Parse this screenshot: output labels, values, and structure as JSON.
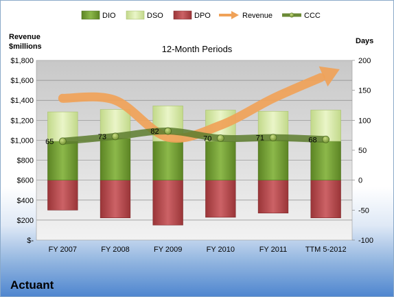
{
  "company": "Actuant",
  "chart_data": {
    "type": "bar",
    "title": "12-Month Periods",
    "categories": [
      "FY 2007",
      "FY 2008",
      "FY 2009",
      "FY 2010",
      "FY 2011",
      "TTM 5-2012"
    ],
    "y_left": {
      "label_line1": "Revenue",
      "label_line2": "$millions",
      "ticks": [
        "$-",
        "$200",
        "$400",
        "$600",
        "$800",
        "$1,000",
        "$1,200",
        "$1,400",
        "$1,600",
        "$1,800"
      ],
      "range": [
        0,
        1800
      ]
    },
    "y_right": {
      "label": "Days",
      "ticks": [
        "-100",
        "-50",
        "0",
        "50",
        "100",
        "150",
        "200"
      ],
      "range": [
        -100,
        200
      ]
    },
    "grid": true,
    "legend_position": "top",
    "colors": {
      "DIO": "#6f9a2f",
      "DSO": "#d5e8a0",
      "DPO": "#b5484b",
      "Revenue": "#f0a258",
      "CCC": "#5b7a30"
    },
    "series": [
      {
        "name": "DIO",
        "axis": "days",
        "stack": "positive",
        "values": [
          65,
          70,
          65,
          65,
          67,
          65
        ]
      },
      {
        "name": "DSO",
        "axis": "days",
        "stack": "positive",
        "values": [
          49,
          48,
          59,
          52,
          48,
          52
        ]
      },
      {
        "name": "DPO",
        "axis": "days",
        "stack": "negative",
        "values": [
          -50,
          -63,
          -75,
          -62,
          -55,
          -63
        ]
      },
      {
        "name": "Revenue",
        "axis": "revenue",
        "type": "smooth-arrow",
        "values": [
          1420,
          1400,
          1030,
          1150,
          1420,
          1650
        ]
      },
      {
        "name": "CCC",
        "axis": "days",
        "type": "line",
        "values": [
          65,
          73,
          82,
          70,
          71,
          68
        ]
      }
    ],
    "data_labels": [
      "65",
      "73",
      "82",
      "70",
      "71",
      "68"
    ]
  }
}
